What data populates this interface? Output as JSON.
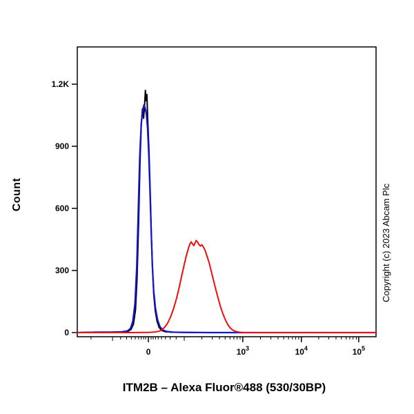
{
  "page": {
    "background": "#ffffff"
  },
  "annotations": {
    "copyright": "Copyright (c) 2023 Abcam Plc"
  },
  "chart_data": {
    "type": "histogram-overlay",
    "subtype": "flow-cytometry",
    "title": "",
    "xlabel": "ITM2B – Alexa Fluor®488 (530/30BP)",
    "ylabel": "Count",
    "x_scale": "biexponential",
    "ylim": [
      0,
      1380
    ],
    "grid": false,
    "legend": "none",
    "x_ticks": [
      {
        "label": "0",
        "frac": 0.238
      },
      {
        "base": "10",
        "exp": "3",
        "frac": 0.554
      },
      {
        "base": "10",
        "exp": "4",
        "frac": 0.75
      },
      {
        "base": "10",
        "exp": "5",
        "frac": 0.942
      }
    ],
    "x_decade_ticks": [
      0.118,
      0.358
    ],
    "x_minor_ticks": [
      0.046,
      0.145,
      0.165,
      0.181,
      0.194,
      0.205,
      0.214,
      0.222,
      0.229,
      0.247,
      0.254,
      0.262,
      0.271,
      0.282,
      0.295,
      0.311,
      0.331,
      0.417,
      0.452,
      0.476,
      0.495,
      0.511,
      0.524,
      0.535,
      0.545,
      0.613,
      0.648,
      0.672,
      0.691,
      0.707,
      0.72,
      0.731,
      0.741,
      0.808,
      0.842,
      0.866,
      0.884,
      0.9,
      0.912,
      0.923,
      0.934
    ],
    "y_ticks": [
      {
        "label": "0",
        "value": 0
      },
      {
        "label": "300",
        "value": 300
      },
      {
        "label": "600",
        "value": 600
      },
      {
        "label": "900",
        "value": 900
      },
      {
        "label": "1.2K",
        "value": 1200
      }
    ],
    "series": [
      {
        "name": "histogram-black",
        "color": "#000000",
        "width": 2,
        "points": [
          [
            0,
            0
          ],
          [
            0.06,
            2
          ],
          [
            0.1,
            1
          ],
          [
            0.13,
            3
          ],
          [
            0.155,
            2
          ],
          [
            0.17,
            6
          ],
          [
            0.18,
            15
          ],
          [
            0.188,
            40
          ],
          [
            0.195,
            110
          ],
          [
            0.2,
            260
          ],
          [
            0.205,
            520
          ],
          [
            0.21,
            820
          ],
          [
            0.214,
            1000
          ],
          [
            0.218,
            1080
          ],
          [
            0.222,
            1035
          ],
          [
            0.225,
            1090
          ],
          [
            0.228,
            1170
          ],
          [
            0.2305,
            1120
          ],
          [
            0.233,
            1150
          ],
          [
            0.236,
            1020
          ],
          [
            0.24,
            880
          ],
          [
            0.244,
            680
          ],
          [
            0.248,
            470
          ],
          [
            0.252,
            300
          ],
          [
            0.256,
            185
          ],
          [
            0.261,
            105
          ],
          [
            0.267,
            55
          ],
          [
            0.274,
            25
          ],
          [
            0.283,
            10
          ],
          [
            0.295,
            4
          ],
          [
            0.315,
            2
          ],
          [
            0.35,
            1
          ],
          [
            0.42,
            0
          ],
          [
            1,
            0
          ]
        ]
      },
      {
        "name": "histogram-blue",
        "color": "#1414d4",
        "width": 2.2,
        "points": [
          [
            0,
            0
          ],
          [
            0.08,
            2
          ],
          [
            0.12,
            2
          ],
          [
            0.15,
            4
          ],
          [
            0.168,
            8
          ],
          [
            0.178,
            20
          ],
          [
            0.186,
            55
          ],
          [
            0.193,
            140
          ],
          [
            0.199,
            320
          ],
          [
            0.204,
            580
          ],
          [
            0.209,
            850
          ],
          [
            0.214,
            1010
          ],
          [
            0.219,
            1075
          ],
          [
            0.223,
            1100
          ],
          [
            0.227,
            1085
          ],
          [
            0.231,
            1060
          ],
          [
            0.235,
            990
          ],
          [
            0.239,
            870
          ],
          [
            0.243,
            700
          ],
          [
            0.247,
            500
          ],
          [
            0.251,
            330
          ],
          [
            0.256,
            200
          ],
          [
            0.262,
            115
          ],
          [
            0.269,
            60
          ],
          [
            0.277,
            28
          ],
          [
            0.287,
            12
          ],
          [
            0.3,
            5
          ],
          [
            0.32,
            2
          ],
          [
            0.36,
            1
          ],
          [
            0.44,
            0
          ],
          [
            1,
            0
          ]
        ]
      },
      {
        "name": "histogram-red",
        "color": "#f10c0c",
        "width": 2,
        "points": [
          [
            0,
            0
          ],
          [
            0.18,
            0
          ],
          [
            0.22,
            1
          ],
          [
            0.24,
            1
          ],
          [
            0.26,
            3
          ],
          [
            0.272,
            6
          ],
          [
            0.282,
            12
          ],
          [
            0.292,
            25
          ],
          [
            0.302,
            45
          ],
          [
            0.312,
            75
          ],
          [
            0.322,
            115
          ],
          [
            0.332,
            165
          ],
          [
            0.342,
            225
          ],
          [
            0.351,
            285
          ],
          [
            0.359,
            335
          ],
          [
            0.366,
            378
          ],
          [
            0.372,
            408
          ],
          [
            0.377,
            428
          ],
          [
            0.381,
            438
          ],
          [
            0.386,
            428
          ],
          [
            0.39,
            420
          ],
          [
            0.394,
            433
          ],
          [
            0.398,
            445
          ],
          [
            0.402,
            438
          ],
          [
            0.407,
            426
          ],
          [
            0.412,
            418
          ],
          [
            0.417,
            424
          ],
          [
            0.422,
            414
          ],
          [
            0.428,
            396
          ],
          [
            0.434,
            370
          ],
          [
            0.441,
            338
          ],
          [
            0.448,
            298
          ],
          [
            0.456,
            252
          ],
          [
            0.464,
            206
          ],
          [
            0.472,
            162
          ],
          [
            0.48,
            122
          ],
          [
            0.488,
            88
          ],
          [
            0.496,
            60
          ],
          [
            0.504,
            38
          ],
          [
            0.512,
            22
          ],
          [
            0.52,
            12
          ],
          [
            0.529,
            6
          ],
          [
            0.538,
            3
          ],
          [
            0.548,
            1
          ],
          [
            0.558,
            0
          ],
          [
            1,
            0
          ]
        ]
      }
    ]
  }
}
